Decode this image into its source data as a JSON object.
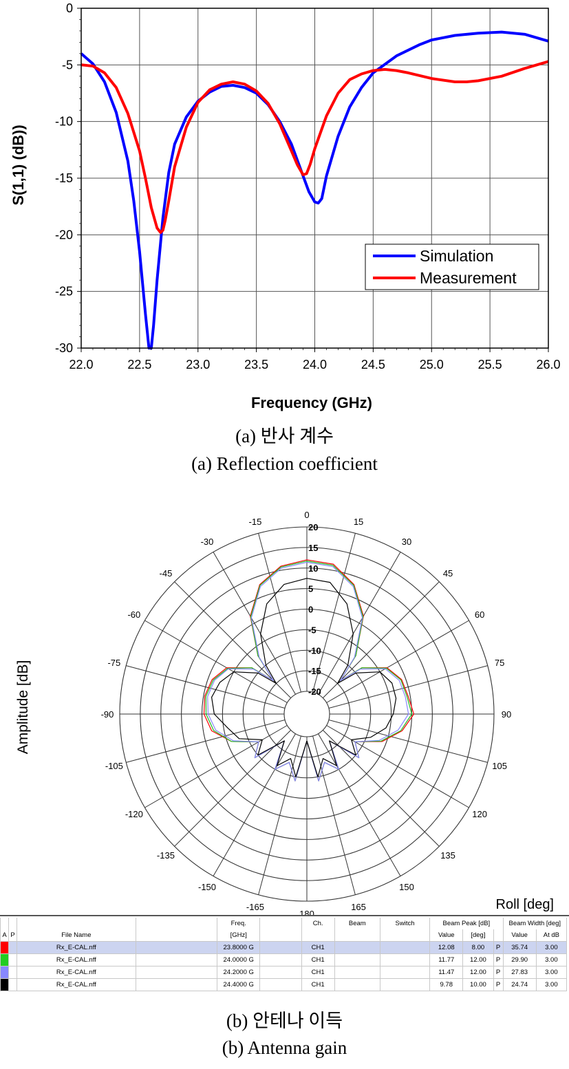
{
  "chart_data": [
    {
      "type": "line",
      "xlabel": "Frequency (GHz)",
      "ylabel": "S(1,1) (dB))",
      "xlim": [
        22.0,
        26.0
      ],
      "ylim": [
        -30,
        0
      ],
      "xticks": [
        "22.0",
        "22.5",
        "23.0",
        "23.5",
        "24.0",
        "24.5",
        "25.0",
        "25.5",
        "26.0"
      ],
      "yticks": [
        "0",
        "-5",
        "-10",
        "-15",
        "-20",
        "-25",
        "-30"
      ],
      "grid": true,
      "legend_position": "bottom-right",
      "series": [
        {
          "name": "Simulation",
          "color": "#0000ff",
          "x": [
            22.0,
            22.1,
            22.2,
            22.3,
            22.4,
            22.45,
            22.5,
            22.55,
            22.58,
            22.6,
            22.62,
            22.65,
            22.7,
            22.75,
            22.8,
            22.9,
            23.0,
            23.1,
            23.2,
            23.3,
            23.4,
            23.5,
            23.6,
            23.7,
            23.8,
            23.9,
            23.95,
            24.0,
            24.03,
            24.06,
            24.1,
            24.2,
            24.3,
            24.4,
            24.5,
            24.7,
            24.9,
            25.0,
            25.2,
            25.4,
            25.6,
            25.8,
            26.0
          ],
          "y": [
            -4.0,
            -4.9,
            -6.5,
            -9.2,
            -13.5,
            -17.0,
            -21.5,
            -27.0,
            -30.0,
            -30.0,
            -28.0,
            -24.0,
            -18.5,
            -14.5,
            -12.0,
            -9.6,
            -8.2,
            -7.4,
            -6.9,
            -6.8,
            -7.0,
            -7.5,
            -8.5,
            -10.0,
            -12.0,
            -14.8,
            -16.2,
            -17.1,
            -17.2,
            -16.8,
            -14.8,
            -11.3,
            -8.7,
            -7.0,
            -5.7,
            -4.2,
            -3.2,
            -2.8,
            -2.4,
            -2.2,
            -2.1,
            -2.3,
            -2.9
          ]
        },
        {
          "name": "Measurement",
          "color": "#ff0000",
          "x": [
            22.0,
            22.1,
            22.2,
            22.3,
            22.4,
            22.5,
            22.55,
            22.6,
            22.65,
            22.68,
            22.7,
            22.72,
            22.75,
            22.8,
            22.9,
            23.0,
            23.1,
            23.2,
            23.3,
            23.4,
            23.5,
            23.6,
            23.7,
            23.8,
            23.85,
            23.9,
            23.93,
            23.96,
            24.0,
            24.1,
            24.2,
            24.3,
            24.4,
            24.5,
            24.6,
            24.7,
            24.8,
            25.0,
            25.2,
            25.3,
            25.4,
            25.6,
            25.8,
            26.0
          ],
          "y": [
            -5.0,
            -5.1,
            -5.7,
            -7.0,
            -9.3,
            -12.6,
            -15.0,
            -17.6,
            -19.4,
            -19.8,
            -19.6,
            -18.7,
            -17.0,
            -14.0,
            -10.5,
            -8.3,
            -7.2,
            -6.7,
            -6.5,
            -6.7,
            -7.3,
            -8.4,
            -10.2,
            -12.6,
            -13.8,
            -14.7,
            -14.6,
            -13.8,
            -12.4,
            -9.5,
            -7.5,
            -6.3,
            -5.8,
            -5.5,
            -5.4,
            -5.5,
            -5.7,
            -6.2,
            -6.5,
            -6.5,
            -6.4,
            -6.0,
            -5.3,
            -4.7
          ]
        }
      ]
    },
    {
      "type": "polar",
      "ylabel": "Amplitude [dB]",
      "xlabel": "Roll [deg]",
      "rlim": [
        -20,
        20
      ],
      "radial_ticks": [
        "20",
        "15",
        "10",
        "5",
        "0",
        "-5",
        "-10",
        "-15",
        "-20"
      ],
      "angle_labels": [
        "0",
        "15",
        "30",
        "45",
        "60",
        "75",
        "90",
        "105",
        "120",
        "135",
        "150",
        "165",
        "180",
        "-165",
        "-150",
        "-135",
        "-120",
        "-105",
        "-90",
        "-75",
        "-60",
        "-45",
        "-30",
        "-15"
      ],
      "series": [
        {
          "name": "23.8000 G",
          "color": "#ff0000"
        },
        {
          "name": "24.0000 G",
          "color": "#22bb22"
        },
        {
          "name": "24.2000 G",
          "color": "#8888ff"
        },
        {
          "name": "24.4000 G",
          "color": "#000000"
        }
      ],
      "pattern_deg": [
        -180,
        -170,
        -160,
        -150,
        -140,
        -130,
        -120,
        -110,
        -100,
        -90,
        -80,
        -70,
        -60,
        -50,
        -45,
        -40,
        -30,
        -20,
        -10,
        0,
        10,
        20,
        30,
        40,
        45,
        50,
        60,
        70,
        80,
        90,
        100,
        110,
        120,
        130,
        140,
        150,
        160,
        170,
        180
      ],
      "pattern_db": [
        [
          -19,
          -9,
          -13,
          -10,
          -17,
          -9,
          -12,
          -6,
          -2,
          -0.5,
          -0.3,
          -1,
          -3,
          -8,
          -14,
          -7,
          2,
          8,
          11,
          12,
          11.5,
          8,
          2,
          -7,
          -14,
          -8,
          -3,
          -1,
          -0.5,
          0.5,
          -2,
          -6,
          -12,
          -9,
          -17,
          -10,
          -13,
          -9,
          -19
        ],
        [
          -19,
          -9,
          -13,
          -10,
          -17,
          -9,
          -12,
          -6,
          -2.5,
          -1,
          -0.6,
          -1.3,
          -3.3,
          -8,
          -14,
          -7,
          1.8,
          7.8,
          10.8,
          11.7,
          11.2,
          7.8,
          1.8,
          -7,
          -14,
          -8,
          -3.2,
          -1.2,
          -0.8,
          0,
          -2.3,
          -6.3,
          -12,
          -9,
          -17,
          -10,
          -13,
          -9,
          -19
        ],
        [
          -19,
          -9,
          -13,
          -10,
          -17,
          -9,
          -12,
          -6.5,
          -3,
          -1.5,
          -1,
          -1.6,
          -3.5,
          -8.5,
          -14,
          -7.5,
          1.5,
          7.5,
          10.5,
          11.4,
          10.9,
          7.5,
          1.5,
          -7.5,
          -14,
          -8.5,
          -3.5,
          -1.6,
          -1.2,
          -0.8,
          -3,
          -6.8,
          -12,
          -9,
          -17,
          -10,
          -13,
          -9,
          -19
        ],
        [
          -19,
          -10,
          -14,
          -11,
          -17,
          -10,
          -13,
          -8,
          -6,
          -3,
          -2,
          -3,
          -5,
          -10,
          -15,
          -10,
          -3,
          3,
          6.5,
          7.5,
          7,
          3,
          -3,
          -10,
          -15,
          -10,
          -5,
          -3.5,
          -3.5,
          -4.5,
          -6,
          -9,
          -13,
          -10,
          -17,
          -11,
          -14,
          -10,
          -19
        ]
      ]
    }
  ],
  "captions": {
    "a_korean": "(a) 반사 계수",
    "a_english": "(a) Reflection coefficient",
    "b_korean": "(b) 안테나 이득",
    "b_english": "(b) Antenna gain"
  },
  "table": {
    "head1": {
      "a": "",
      "p": "",
      "file": "",
      "freq": "Freq.",
      "ch": "Ch.",
      "beam": "Beam",
      "switch": "Switch",
      "peak": "Beam Peak [dB]",
      "width": "Beam Width [deg]"
    },
    "head2": {
      "a": "A",
      "p": "P",
      "file": "File Name",
      "freq": "[GHz]",
      "ch": "",
      "beam": "",
      "switch": "",
      "pv": "Value",
      "pd": "[deg]",
      "wv": "Value",
      "wa": "At dB"
    },
    "rows": [
      {
        "color": "#ff0000",
        "file": "Rx_E-CAL.nff",
        "freq": "23.8000 G",
        "ch": "CH1",
        "pv": "12.08",
        "pd": "8.00",
        "p": "P",
        "wv": "35.74",
        "wa": "3.00"
      },
      {
        "color": "#22cc22",
        "file": "Rx_E-CAL.nff",
        "freq": "24.0000 G",
        "ch": "CH1",
        "pv": "11.77",
        "pd": "12.00",
        "p": "P",
        "wv": "29.90",
        "wa": "3.00"
      },
      {
        "color": "#8888ff",
        "file": "Rx_E-CAL.nff",
        "freq": "24.2000 G",
        "ch": "CH1",
        "pv": "11.47",
        "pd": "12.00",
        "p": "P",
        "wv": "27.83",
        "wa": "3.00"
      },
      {
        "color": "#000000",
        "file": "Rx_E-CAL.nff",
        "freq": "24.4000 G",
        "ch": "CH1",
        "pv": "9.78",
        "pd": "10.00",
        "p": "P",
        "wv": "24.74",
        "wa": "3.00"
      }
    ]
  }
}
